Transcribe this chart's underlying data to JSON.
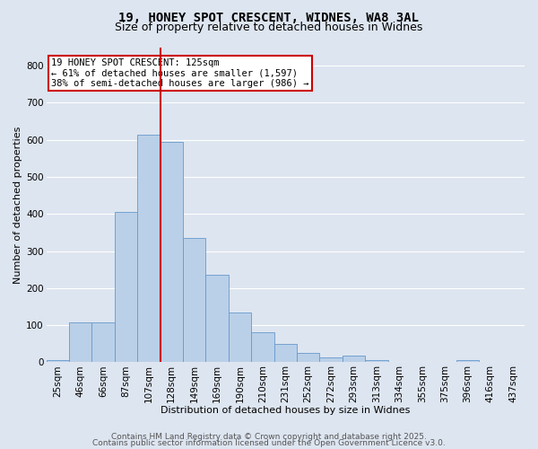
{
  "title_line1": "19, HONEY SPOT CRESCENT, WIDNES, WA8 3AL",
  "title_line2": "Size of property relative to detached houses in Widnes",
  "xlabel": "Distribution of detached houses by size in Widnes",
  "ylabel": "Number of detached properties",
  "bar_labels": [
    "25sqm",
    "46sqm",
    "66sqm",
    "87sqm",
    "107sqm",
    "128sqm",
    "149sqm",
    "169sqm",
    "190sqm",
    "210sqm",
    "231sqm",
    "252sqm",
    "272sqm",
    "293sqm",
    "313sqm",
    "334sqm",
    "355sqm",
    "375sqm",
    "396sqm",
    "416sqm",
    "437sqm"
  ],
  "bar_values": [
    5,
    108,
    108,
    405,
    615,
    595,
    335,
    235,
    135,
    80,
    50,
    25,
    12,
    18,
    5,
    0,
    0,
    0,
    5,
    0,
    0
  ],
  "bar_color": "#bad0e8",
  "bar_edgecolor": "#6699cc",
  "bar_width": 1.0,
  "ref_line_x": 4.5,
  "ref_line_color": "#cc0000",
  "annotation_text": "19 HONEY SPOT CRESCENT: 125sqm\n← 61% of detached houses are smaller (1,597)\n38% of semi-detached houses are larger (986) →",
  "ylim": [
    0,
    850
  ],
  "yticks": [
    0,
    100,
    200,
    300,
    400,
    500,
    600,
    700,
    800
  ],
  "background_color": "#dde5f0",
  "grid_color": "#ffffff",
  "footer_line1": "Contains HM Land Registry data © Crown copyright and database right 2025.",
  "footer_line2": "Contains public sector information licensed under the Open Government Licence v3.0.",
  "title_fontsize": 10,
  "subtitle_fontsize": 9,
  "axis_label_fontsize": 8,
  "tick_fontsize": 7.5,
  "annotation_fontsize": 7.5,
  "footer_fontsize": 6.5
}
